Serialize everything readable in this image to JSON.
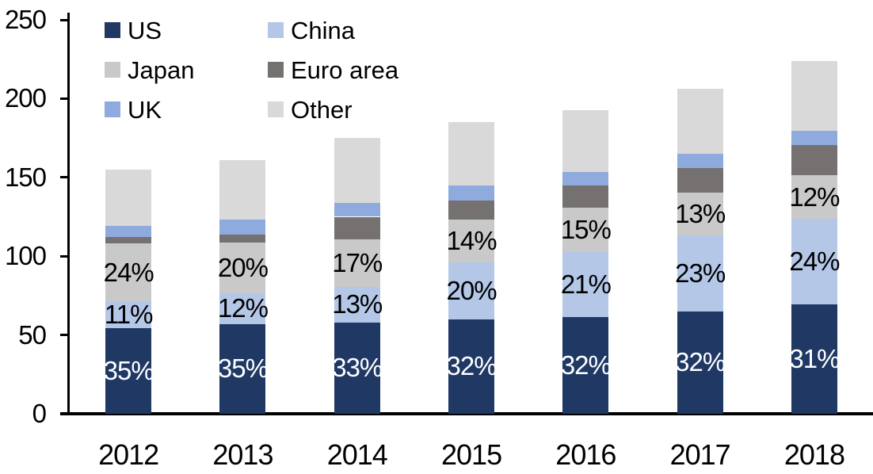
{
  "chart_data": {
    "type": "bar",
    "stacked": true,
    "title": "",
    "xlabel": "",
    "ylabel": "",
    "categories": [
      "2012",
      "2013",
      "2014",
      "2015",
      "2016",
      "2017",
      "2018"
    ],
    "series": [
      {
        "name": "US",
        "color": "#1F3864",
        "values": [
          54.5,
          57,
          58,
          60,
          61.5,
          65,
          69.5
        ],
        "labels": [
          "35%",
          "35%",
          "33%",
          "32%",
          "32%",
          "32%",
          "31%"
        ],
        "label_color": "#FFFFFF"
      },
      {
        "name": "China",
        "color": "#B4C7E7",
        "values": [
          17,
          19.5,
          22.5,
          36,
          41,
          48,
          54
        ],
        "labels": [
          "11%",
          "12%",
          "13%",
          "20%",
          "21%",
          "23%",
          "24%"
        ],
        "label_color": "#000000"
      },
      {
        "name": "Japan",
        "color": "#C9C9C9",
        "values": [
          36.5,
          32,
          30,
          27,
          28.5,
          27.5,
          28
        ],
        "labels": [
          "24%",
          "20%",
          "17%",
          "14%",
          "15%",
          "13%",
          "12%"
        ],
        "label_color": "#000000"
      },
      {
        "name": "Euro area",
        "color": "#767171",
        "values": [
          4,
          5,
          14.5,
          12.5,
          14,
          15.5,
          19
        ],
        "labels": null,
        "label_color": null
      },
      {
        "name": "UK",
        "color": "#8FAADC",
        "values": [
          7,
          9.5,
          9,
          9.5,
          8.5,
          9,
          9
        ],
        "labels": null,
        "label_color": null
      },
      {
        "name": "Other",
        "color": "#D9D9D9",
        "values": [
          36,
          38,
          41,
          40,
          39,
          41,
          44.5
        ],
        "labels": null,
        "label_color": null
      }
    ],
    "approx_totals": [
      155,
      161,
      175,
      185,
      192.5,
      206,
      224
    ],
    "ylim": [
      0,
      250
    ],
    "yticks": [
      0,
      50,
      100,
      150,
      200,
      250
    ],
    "grid": false,
    "legend_position": "top-left",
    "legend_columns": [
      [
        "US",
        "Japan",
        "UK"
      ],
      [
        "China",
        "Euro area",
        "Other"
      ]
    ],
    "axis_color": "#000000",
    "text_color": "#000000",
    "background_color": "#FFFFFF"
  }
}
